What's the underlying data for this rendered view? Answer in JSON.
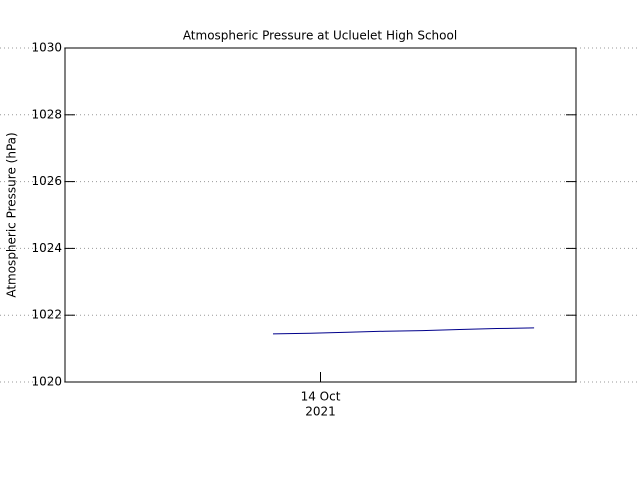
{
  "chart_data": {
    "type": "line",
    "title": "Atmospheric Pressure at Ucluelet High School",
    "y_label": "Atmospheric Pressure (hPa)",
    "x": [
      13.907,
      13.98,
      14.053,
      14.126,
      14.199,
      14.272,
      14.345,
      14.418
    ],
    "series": [
      {
        "name": "Atmospheric Pressure",
        "color": "#00008b",
        "values": [
          1021.44,
          1021.46,
          1021.49,
          1021.52,
          1021.54,
          1021.57,
          1021.6,
          1021.62
        ]
      }
    ],
    "xlim": [
      13.5,
      14.5
    ],
    "xticks": [
      {
        "value": 14,
        "label": "14 Oct"
      }
    ],
    "x_year_label": "2021",
    "ylim": [
      1020,
      1030
    ],
    "yticks": [
      1020,
      1022,
      1024,
      1026,
      1028,
      1030
    ],
    "grid": true
  }
}
